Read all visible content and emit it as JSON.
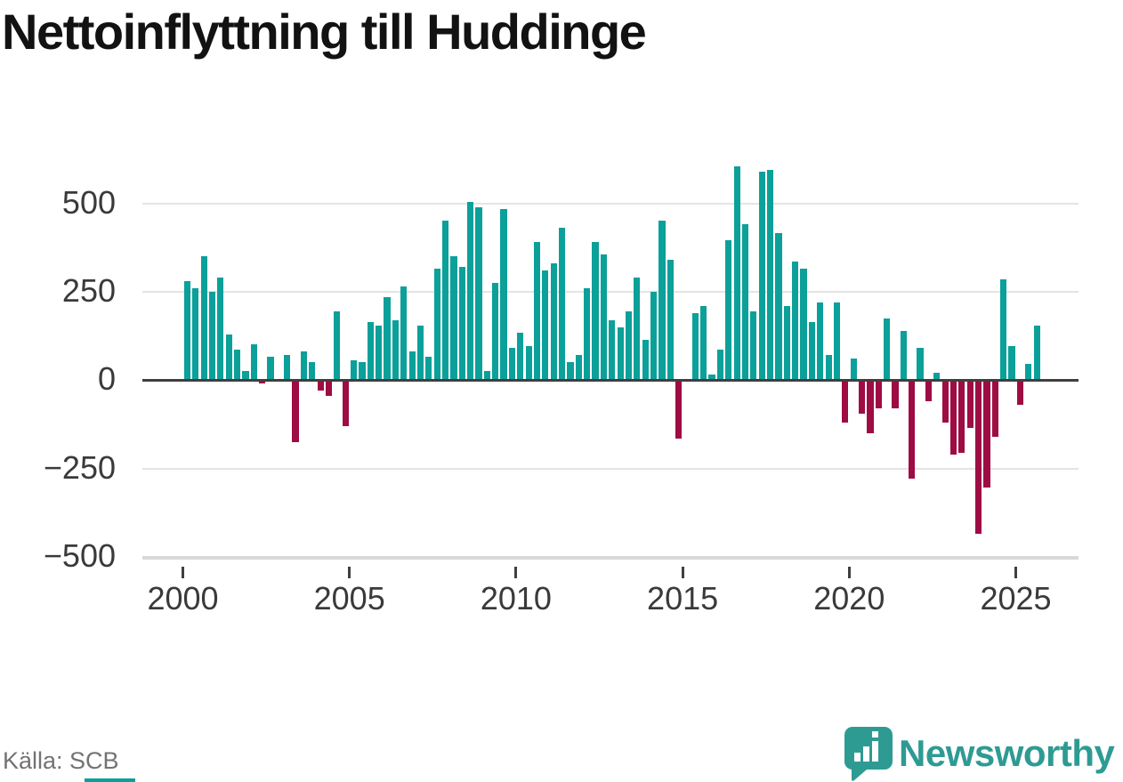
{
  "title": "Nettoinflyttning till Huddinge",
  "source": {
    "label": "Källa: SCB"
  },
  "brand": {
    "name": "Newsworthy",
    "color": "#2e9b93"
  },
  "colors": {
    "positive": "#0ba099",
    "negative": "#9e0c44",
    "zero_line": "#3f3f3f",
    "gridline": "#e4e4e4",
    "axis_text": "#3a3a3a",
    "title_text": "#121212",
    "source_text": "#737373",
    "background": "#ffffff"
  },
  "chart_data": {
    "type": "bar",
    "title": "Nettoinflyttning till Huddinge",
    "frequency": "quarterly",
    "start_period": "2000Q1",
    "end_period": "2025Q3",
    "grid": true,
    "legend": "none",
    "ylim": [
      -560,
      660
    ],
    "y_ticks": [
      {
        "value": 500,
        "label": "500"
      },
      {
        "value": 250,
        "label": "250"
      },
      {
        "value": 0,
        "label": "0"
      },
      {
        "value": -250,
        "label": "−250"
      },
      {
        "value": -500,
        "label": "−500"
      }
    ],
    "x_ticks": [
      {
        "year": 2000,
        "label": "2000"
      },
      {
        "year": 2005,
        "label": "2005"
      },
      {
        "year": 2010,
        "label": "2010"
      },
      {
        "year": 2015,
        "label": "2015"
      },
      {
        "year": 2020,
        "label": "2020"
      },
      {
        "year": 2025,
        "label": "2025"
      }
    ],
    "positive_color": "#0ba099",
    "negative_color": "#9e0c44",
    "values": [
      280,
      260,
      350,
      250,
      290,
      130,
      85,
      25,
      100,
      -10,
      65,
      0,
      70,
      -175,
      80,
      50,
      -30,
      -45,
      195,
      -130,
      55,
      50,
      165,
      155,
      235,
      170,
      265,
      80,
      155,
      65,
      315,
      450,
      350,
      320,
      505,
      490,
      25,
      275,
      485,
      90,
      135,
      95,
      390,
      310,
      330,
      430,
      50,
      70,
      260,
      390,
      355,
      170,
      150,
      195,
      290,
      115,
      250,
      450,
      340,
      -165,
      0,
      190,
      210,
      15,
      85,
      395,
      605,
      440,
      195,
      590,
      595,
      415,
      210,
      335,
      315,
      165,
      220,
      70,
      220,
      -120,
      60,
      -95,
      -150,
      -80,
      175,
      -80,
      140,
      -280,
      90,
      -60,
      20,
      -120,
      -210,
      -205,
      -135,
      -435,
      -305,
      -160,
      285,
      95,
      -70,
      45,
      155
    ]
  }
}
